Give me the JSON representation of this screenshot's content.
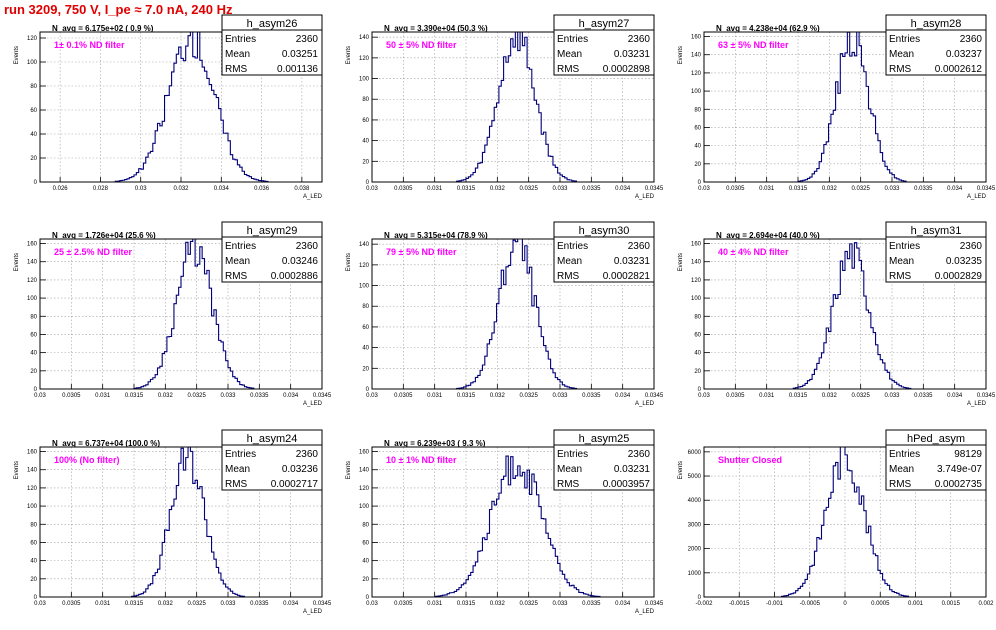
{
  "page_title": "run 3209,   750 V, I_pe ≈ 7.0 nA, 240 Hz",
  "stat_labels": {
    "entries": "Entries",
    "mean": "Mean",
    "rms": "RMS"
  },
  "colors": {
    "histogram": "#00007a",
    "title": "#e00000",
    "filter_label": "#ff00ff"
  },
  "chart_data": [
    {
      "type": "bar",
      "name": "h_asym26",
      "navg_label": "N_avg = 6.175e+02 ( 0.9 %)",
      "filter_label": "1± 0.1% ND filter",
      "ylabel": "Events",
      "xlabel": "A_LED",
      "stats": {
        "entries": "2360",
        "mean": "0.03251",
        "rms": "0.001136"
      },
      "xlim": [
        0.025,
        0.039
      ],
      "ylim": [
        0,
        125
      ],
      "xticks": [
        "0.026",
        "0.028",
        "0.03",
        "0.032",
        "0.034",
        "0.036",
        "0.038"
      ],
      "yticks": [
        "0",
        "20",
        "40",
        "60",
        "80",
        "100",
        "120"
      ],
      "hist": {
        "mean": 0.03251,
        "rms": 0.001136,
        "peak": 122,
        "bins": 120,
        "seed": 26
      }
    },
    {
      "type": "bar",
      "name": "h_asym27",
      "navg_label": "N_avg = 3.390e+04 (50.3 %)",
      "filter_label": "50 ± 5% ND filter",
      "ylabel": "Events",
      "xlabel": "A_LED",
      "stats": {
        "entries": "2360",
        "mean": "0.03231",
        "rms": "0.0002898"
      },
      "xlim": [
        0.03,
        0.0345
      ],
      "ylim": [
        0,
        145
      ],
      "xticks": [
        "0.03",
        "0.0305",
        "0.031",
        "0.0315",
        "0.032",
        "0.0325",
        "0.033",
        "0.0335",
        "0.034",
        "0.0345"
      ],
      "yticks": [
        "0",
        "20",
        "40",
        "60",
        "80",
        "100",
        "120",
        "140"
      ],
      "hist": {
        "mean": 0.03231,
        "rms": 0.0002898,
        "peak": 140,
        "bins": 120,
        "seed": 27
      }
    },
    {
      "type": "bar",
      "name": "h_asym28",
      "navg_label": "N_avg = 4.238e+04 (62.9 %)",
      "filter_label": "63 ± 5% ND filter",
      "ylabel": "Events",
      "xlabel": "A_LED",
      "stats": {
        "entries": "2360",
        "mean": "0.03237",
        "rms": "0.0002612"
      },
      "xlim": [
        0.03,
        0.0345
      ],
      "ylim": [
        0,
        165
      ],
      "xticks": [
        "0.03",
        "0.0305",
        "0.031",
        "0.0315",
        "0.032",
        "0.0325",
        "0.033",
        "0.0335",
        "0.034",
        "0.0345"
      ],
      "yticks": [
        "0",
        "20",
        "40",
        "60",
        "80",
        "100",
        "120",
        "140",
        "160"
      ],
      "hist": {
        "mean": 0.03237,
        "rms": 0.0002612,
        "peak": 158,
        "bins": 120,
        "seed": 28
      }
    },
    {
      "type": "bar",
      "name": "h_asym29",
      "navg_label": "N_avg = 1.726e+04 (25.6 %)",
      "filter_label": "25 ± 2.5% ND filter",
      "ylabel": "Events",
      "xlabel": "A_LED",
      "stats": {
        "entries": "2360",
        "mean": "0.03246",
        "rms": "0.0002886"
      },
      "xlim": [
        0.03,
        0.0345
      ],
      "ylim": [
        0,
        165
      ],
      "xticks": [
        "0.03",
        "0.0305",
        "0.031",
        "0.0315",
        "0.032",
        "0.0325",
        "0.033",
        "0.0335",
        "0.034",
        "0.0345"
      ],
      "yticks": [
        "0",
        "20",
        "40",
        "60",
        "80",
        "100",
        "120",
        "140",
        "160"
      ],
      "hist": {
        "mean": 0.03246,
        "rms": 0.0002886,
        "peak": 155,
        "bins": 120,
        "seed": 29
      }
    },
    {
      "type": "bar",
      "name": "h_asym30",
      "navg_label": "N_avg = 5.315e+04 (78.9 %)",
      "filter_label": "79 ± 5% ND filter",
      "ylabel": "Events",
      "xlabel": "A_LED",
      "stats": {
        "entries": "2360",
        "mean": "0.03231",
        "rms": "0.0002821"
      },
      "xlim": [
        0.03,
        0.0345
      ],
      "ylim": [
        0,
        145
      ],
      "xticks": [
        "0.03",
        "0.0305",
        "0.031",
        "0.0315",
        "0.032",
        "0.0325",
        "0.033",
        "0.0335",
        "0.034",
        "0.0345"
      ],
      "yticks": [
        "0",
        "20",
        "40",
        "60",
        "80",
        "100",
        "120",
        "140"
      ],
      "hist": {
        "mean": 0.03231,
        "rms": 0.0002821,
        "peak": 142,
        "bins": 120,
        "seed": 30
      }
    },
    {
      "type": "bar",
      "name": "h_asym31",
      "navg_label": "N_avg = 2.694e+04 (40.0 %)",
      "filter_label": "40 ± 4% ND filter",
      "ylabel": "Events",
      "xlabel": "A_LED",
      "stats": {
        "entries": "2360",
        "mean": "0.03235",
        "rms": "0.0002829"
      },
      "xlim": [
        0.03,
        0.0345
      ],
      "ylim": [
        0,
        165
      ],
      "xticks": [
        "0.03",
        "0.0305",
        "0.031",
        "0.0315",
        "0.032",
        "0.0325",
        "0.033",
        "0.0335",
        "0.034",
        "0.0345"
      ],
      "yticks": [
        "0",
        "20",
        "40",
        "60",
        "80",
        "100",
        "120",
        "140",
        "160"
      ],
      "hist": {
        "mean": 0.03235,
        "rms": 0.0002829,
        "peak": 150,
        "bins": 120,
        "seed": 31
      }
    },
    {
      "type": "bar",
      "name": "h_asym24",
      "navg_label": "N_avg = 6.737e+04 (100.0 %)",
      "filter_label": "100% (No filter)",
      "ylabel": "Events",
      "xlabel": "A_LED",
      "stats": {
        "entries": "2360",
        "mean": "0.03236",
        "rms": "0.0002717"
      },
      "xlim": [
        0.03,
        0.0345
      ],
      "ylim": [
        0,
        165
      ],
      "xticks": [
        "0.03",
        "0.0305",
        "0.031",
        "0.0315",
        "0.032",
        "0.0325",
        "0.033",
        "0.0335",
        "0.034",
        "0.0345"
      ],
      "yticks": [
        "0",
        "20",
        "40",
        "60",
        "80",
        "100",
        "120",
        "140",
        "160"
      ],
      "hist": {
        "mean": 0.03236,
        "rms": 0.0002717,
        "peak": 152,
        "bins": 120,
        "seed": 24
      }
    },
    {
      "type": "bar",
      "name": "h_asym25",
      "navg_label": "N_avg = 6.239e+03 ( 9.3 %)",
      "filter_label": "10 ± 1% ND filter",
      "ylabel": "Events",
      "xlabel": "A_LED",
      "stats": {
        "entries": "2360",
        "mean": "0.03231",
        "rms": "0.0003957"
      },
      "xlim": [
        0.03,
        0.0345
      ],
      "ylim": [
        0,
        165
      ],
      "xticks": [
        "0.03",
        "0.0305",
        "0.031",
        "0.0315",
        "0.032",
        "0.0325",
        "0.033",
        "0.0335",
        "0.034",
        "0.0345"
      ],
      "yticks": [
        "0",
        "20",
        "40",
        "60",
        "80",
        "100",
        "120",
        "140",
        "160"
      ],
      "hist": {
        "mean": 0.03231,
        "rms": 0.0003957,
        "peak": 148,
        "bins": 120,
        "seed": 25
      }
    },
    {
      "type": "bar",
      "name": "hPed_asym",
      "navg_label": "",
      "filter_label": "Shutter Closed",
      "ylabel": "Events",
      "xlabel": "",
      "stats": {
        "entries": "98129",
        "mean": "3.749e-07",
        "rms": "0.0002735"
      },
      "xlim": [
        -0.002,
        0.002
      ],
      "ylim": [
        0,
        6200
      ],
      "xticks": [
        "-0.002",
        "-0.0015",
        "-0.001",
        "-0.0005",
        "0",
        "0.0005",
        "0.001",
        "0.0015",
        "0.002"
      ],
      "yticks": [
        "0",
        "1000",
        "2000",
        "3000",
        "4000",
        "5000",
        "6000"
      ],
      "hist": {
        "mean": 0.0,
        "rms": 0.0002735,
        "peak": 5850,
        "bins": 120,
        "seed": 9
      }
    }
  ]
}
